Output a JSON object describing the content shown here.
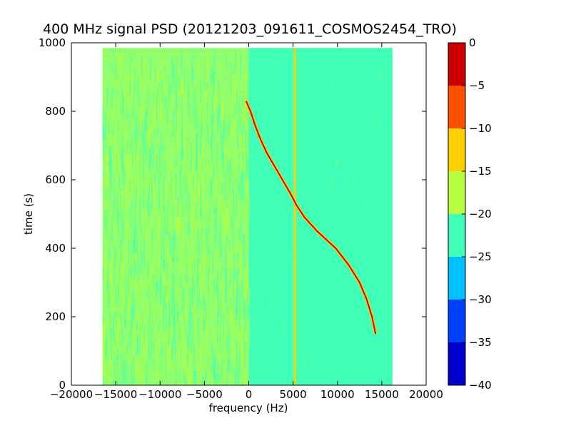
{
  "chart_data": {
    "type": "heatmap",
    "title": "400 MHz signal PSD (20121203_091611_COSMOS2454_TRO)",
    "xlabel": "frequency (Hz)",
    "ylabel": "time (s)",
    "xlim": [
      -20000,
      20000
    ],
    "ylim": [
      0,
      1000
    ],
    "xticks": [
      -20000,
      -15000,
      -10000,
      -5000,
      0,
      5000,
      10000,
      15000,
      20000
    ],
    "xtick_labels": [
      "−20000",
      "−15000",
      "−10000",
      "−5000",
      "0",
      "5000",
      "10000",
      "15000",
      "20000"
    ],
    "yticks": [
      0,
      200,
      400,
      600,
      800,
      1000
    ],
    "ytick_labels": [
      "0",
      "200",
      "400",
      "600",
      "800",
      "1000"
    ],
    "data_extent": {
      "freq_min": -16500,
      "freq_max": 16200,
      "time_min": 0,
      "time_max": 985
    },
    "background_level": {
      "left_band": {
        "freq_range": [
          -16500,
          0
        ],
        "level": -20
      },
      "right_band": {
        "freq_range": [
          0,
          16200
        ],
        "level": -22
      }
    },
    "signal_trace": {
      "name": "Doppler trace",
      "points": [
        {
          "time": 830,
          "freq": -300
        },
        {
          "time": 800,
          "freq": 200
        },
        {
          "time": 760,
          "freq": 700
        },
        {
          "time": 720,
          "freq": 1300
        },
        {
          "time": 680,
          "freq": 2000
        },
        {
          "time": 640,
          "freq": 2900
        },
        {
          "time": 600,
          "freq": 3800
        },
        {
          "time": 560,
          "freq": 4700
        },
        {
          "time": 525,
          "freq": 5400
        },
        {
          "time": 490,
          "freq": 6300
        },
        {
          "time": 450,
          "freq": 7700
        },
        {
          "time": 400,
          "freq": 9800
        },
        {
          "time": 350,
          "freq": 11300
        },
        {
          "time": 300,
          "freq": 12500
        },
        {
          "time": 250,
          "freq": 13300
        },
        {
          "time": 200,
          "freq": 13900
        },
        {
          "time": 150,
          "freq": 14300
        }
      ]
    },
    "vertical_lines": [
      {
        "freq": 5200,
        "level": -15
      }
    ],
    "colorbar": {
      "range": [
        -40,
        0
      ],
      "ticks": [
        0,
        -5,
        -10,
        -15,
        -20,
        -25,
        -30,
        -35,
        -40
      ],
      "tick_labels": [
        "0",
        "−5",
        "−10",
        "−15",
        "−20",
        "−25",
        "−30",
        "−35",
        "−40"
      ],
      "levels": [
        {
          "from": -40,
          "to": -35,
          "color": "#0000cd"
        },
        {
          "from": -35,
          "to": -30,
          "color": "#0040ff"
        },
        {
          "from": -30,
          "to": -25,
          "color": "#00c0ff"
        },
        {
          "from": -25,
          "to": -20,
          "color": "#40ffb7"
        },
        {
          "from": -20,
          "to": -15,
          "color": "#b7ff40"
        },
        {
          "from": -15,
          "to": -10,
          "color": "#ffd000"
        },
        {
          "from": -10,
          "to": -5,
          "color": "#ff5000"
        },
        {
          "from": -5,
          "to": 0,
          "color": "#cd0000"
        }
      ]
    },
    "grid": false,
    "legend": "none"
  }
}
